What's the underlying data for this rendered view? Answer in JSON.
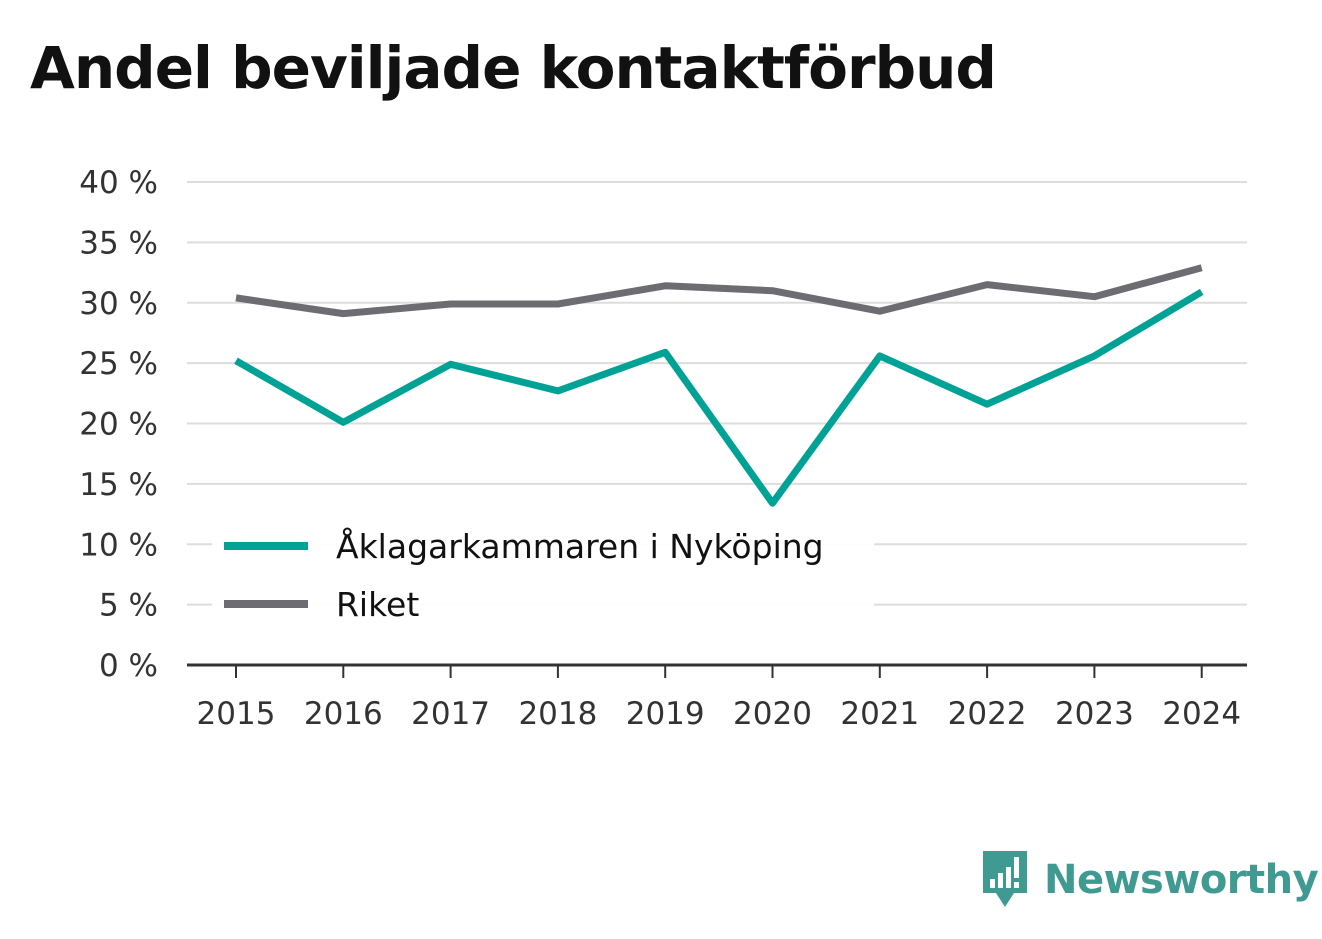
{
  "title": "Andel beviljade kontaktförbud",
  "brand": {
    "name": "Newsworthy",
    "icon": "newsworthy-logo-icon",
    "color": "#3f9a92"
  },
  "chart_data": {
    "type": "line",
    "x": [
      "2015",
      "2016",
      "2017",
      "2018",
      "2019",
      "2020",
      "2021",
      "2022",
      "2023",
      "2024"
    ],
    "series": [
      {
        "name": "Åklagarkammaren i Nyköping",
        "color": "#00a296",
        "values": [
          25.2,
          20.1,
          24.9,
          22.7,
          25.9,
          13.4,
          25.6,
          21.6,
          25.6,
          30.9
        ]
      },
      {
        "name": "Riket",
        "color": "#6d6c73",
        "values": [
          30.4,
          29.1,
          29.9,
          29.9,
          31.4,
          31.0,
          29.3,
          31.5,
          30.5,
          32.9
        ]
      }
    ],
    "ylim": [
      0,
      40
    ],
    "yticks": [
      0,
      5,
      10,
      15,
      20,
      25,
      30,
      35,
      40
    ],
    "ytick_labels": [
      "0 %",
      "5 %",
      "10 %",
      "15 %",
      "20 %",
      "25 %",
      "30 %",
      "35 %",
      "40 %"
    ],
    "grid": true,
    "legend": "bottom-left"
  }
}
